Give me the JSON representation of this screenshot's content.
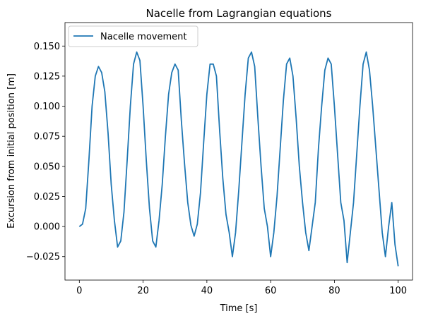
{
  "chart_data": {
    "type": "line",
    "title": "Nacelle from Lagrangian equations",
    "xlabel": "Time [s]",
    "ylabel": "Excursion from initial position [m]",
    "xlim": [
      -4.5,
      104.5
    ],
    "ylim": [
      -0.0445,
      0.1695
    ],
    "xticks": [
      0,
      20,
      40,
      60,
      80,
      100
    ],
    "xtick_labels": [
      "0",
      "20",
      "40",
      "60",
      "80",
      "100"
    ],
    "yticks": [
      -0.025,
      0.0,
      0.025,
      0.05,
      0.075,
      0.1,
      0.125,
      0.15
    ],
    "ytick_labels": [
      "−0.025",
      "0.000",
      "0.025",
      "0.050",
      "0.075",
      "0.100",
      "0.125",
      "0.150"
    ],
    "grid": false,
    "legend": {
      "position": "top-left",
      "entries": [
        "Nacelle movement"
      ]
    },
    "colors": {
      "series": "#1f77b4"
    },
    "series": [
      {
        "name": "Nacelle movement",
        "x": [
          0,
          1,
          2,
          3,
          4,
          5,
          6,
          7,
          8,
          9,
          10,
          11,
          12,
          13,
          14,
          15,
          16,
          17,
          18,
          19,
          20,
          21,
          22,
          23,
          24,
          25,
          26,
          27,
          28,
          29,
          30,
          31,
          32,
          33,
          34,
          35,
          36,
          37,
          38,
          39,
          40,
          41,
          42,
          43,
          44,
          45,
          46,
          47,
          48,
          49,
          50,
          51,
          52,
          53,
          54,
          55,
          56,
          57,
          58,
          59,
          60,
          61,
          62,
          63,
          64,
          65,
          66,
          67,
          68,
          69,
          70,
          71,
          72,
          73,
          74,
          75,
          76,
          77,
          78,
          79,
          80,
          81,
          82,
          83,
          84,
          85,
          86,
          87,
          88,
          89,
          90,
          91,
          92,
          93,
          94,
          95,
          96,
          97,
          98,
          99,
          100
        ],
        "values": [
          0.0,
          0.002,
          0.015,
          0.055,
          0.1,
          0.125,
          0.133,
          0.128,
          0.112,
          0.078,
          0.035,
          0.005,
          -0.017,
          -0.012,
          0.012,
          0.055,
          0.1,
          0.135,
          0.145,
          0.138,
          0.1,
          0.055,
          0.015,
          -0.012,
          -0.017,
          0.005,
          0.035,
          0.075,
          0.11,
          0.128,
          0.135,
          0.13,
          0.088,
          0.052,
          0.02,
          0.001,
          -0.008,
          0.002,
          0.028,
          0.07,
          0.11,
          0.135,
          0.135,
          0.125,
          0.08,
          0.04,
          0.01,
          -0.005,
          -0.025,
          -0.005,
          0.03,
          0.07,
          0.11,
          0.14,
          0.145,
          0.133,
          0.09,
          0.05,
          0.015,
          0.0,
          -0.025,
          -0.005,
          0.025,
          0.065,
          0.105,
          0.135,
          0.14,
          0.125,
          0.09,
          0.05,
          0.02,
          -0.005,
          -0.02,
          0.0,
          0.02,
          0.065,
          0.1,
          0.13,
          0.14,
          0.135,
          0.1,
          0.06,
          0.02,
          0.005,
          -0.03,
          -0.005,
          0.02,
          0.06,
          0.1,
          0.135,
          0.145,
          0.13,
          0.1,
          0.065,
          0.03,
          -0.005,
          -0.025,
          0.0,
          0.02,
          -0.015,
          -0.033
        ]
      }
    ]
  }
}
